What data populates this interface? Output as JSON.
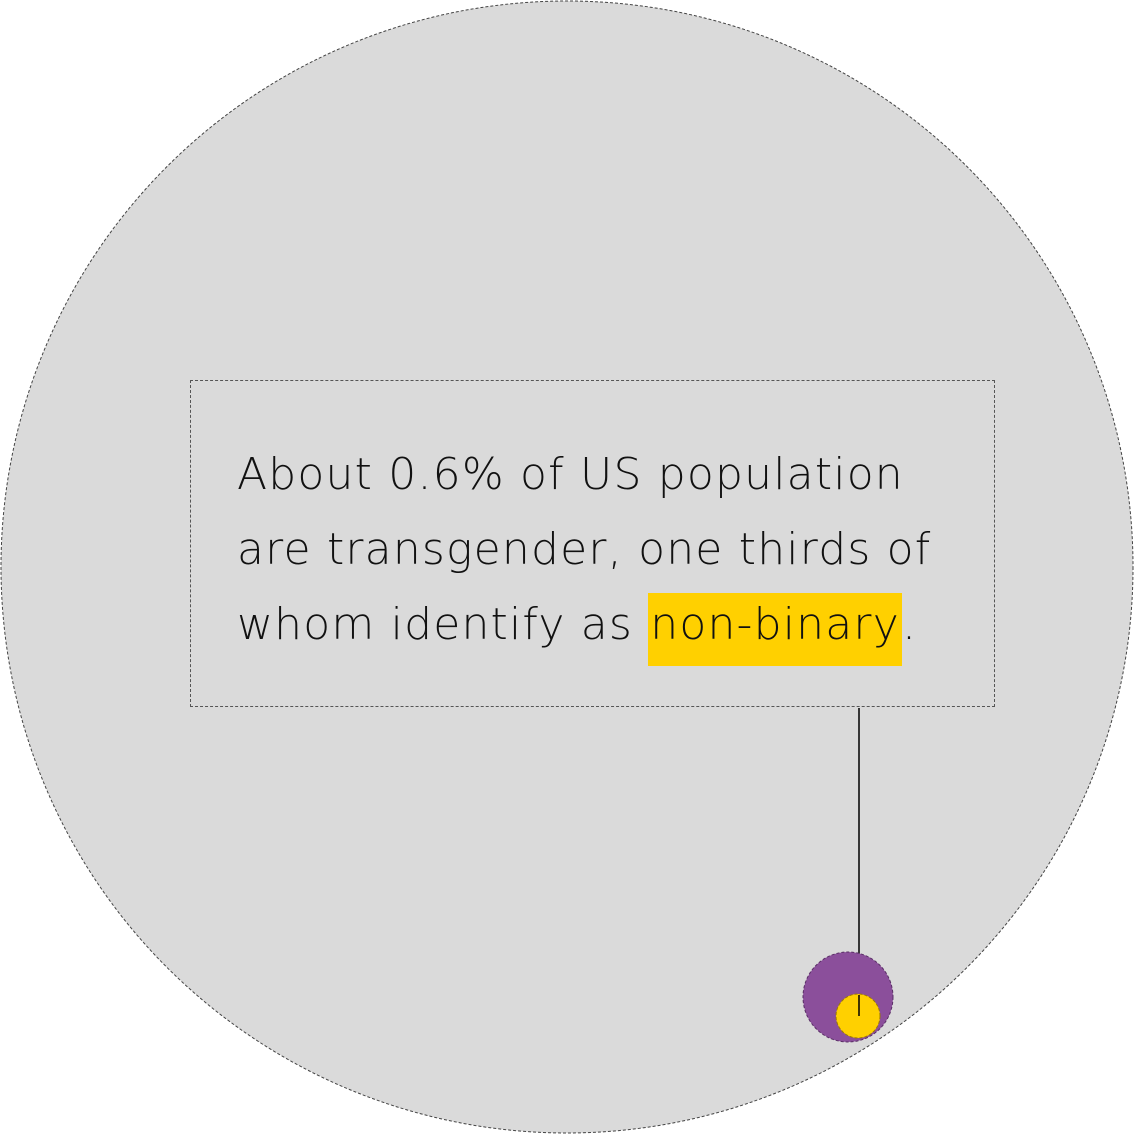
{
  "callout": {
    "line1": "About 0.6% of US population",
    "line2": "are transgender, one thirds of",
    "line3_prefix": "whom identify as ",
    "line3_highlight": "non-binary",
    "line3_suffix": "."
  },
  "colors": {
    "population_circle": "#DADADA",
    "transgender_circle": "#8B4F9B",
    "non_binary_circle": "#FFD000",
    "highlight": "#FFD000",
    "leader_line": "#000000"
  }
}
